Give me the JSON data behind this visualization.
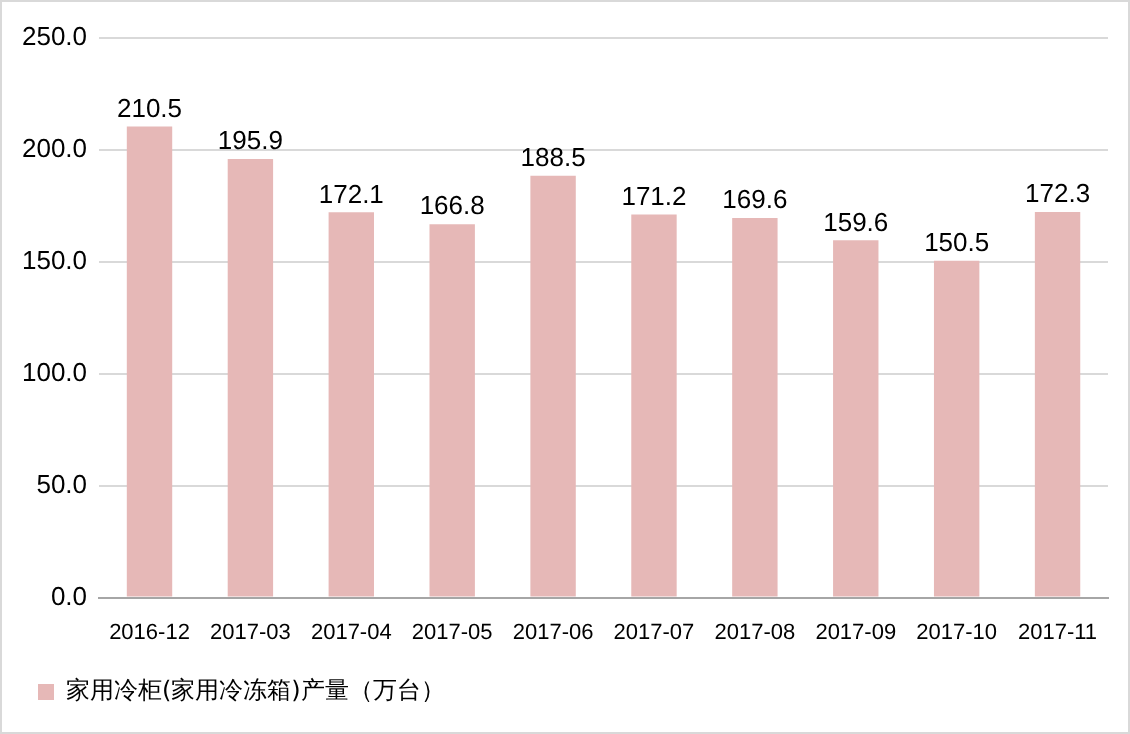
{
  "chart_data": {
    "type": "bar",
    "categories": [
      "2016-12",
      "2017-03",
      "2017-04",
      "2017-05",
      "2017-06",
      "2017-07",
      "2017-08",
      "2017-09",
      "2017-10",
      "2017-11"
    ],
    "series": [
      {
        "name": "家用冷柜(家用冷冻箱)产量（万台）",
        "color": "#e6b8b7",
        "values": [
          210.5,
          195.9,
          172.1,
          166.8,
          188.5,
          171.2,
          169.6,
          159.6,
          150.5,
          172.3
        ]
      }
    ],
    "ylim": [
      0,
      250
    ],
    "yticks": [
      {
        "value": 0,
        "label": "0.0"
      },
      {
        "value": 50,
        "label": "50.0"
      },
      {
        "value": 100,
        "label": "100.0"
      },
      {
        "value": 150,
        "label": "150.0"
      },
      {
        "value": 200,
        "label": "200.0"
      },
      {
        "value": 250,
        "label": "250.0"
      }
    ],
    "grid": "y",
    "legend": "bottom left",
    "data_labels": true
  }
}
